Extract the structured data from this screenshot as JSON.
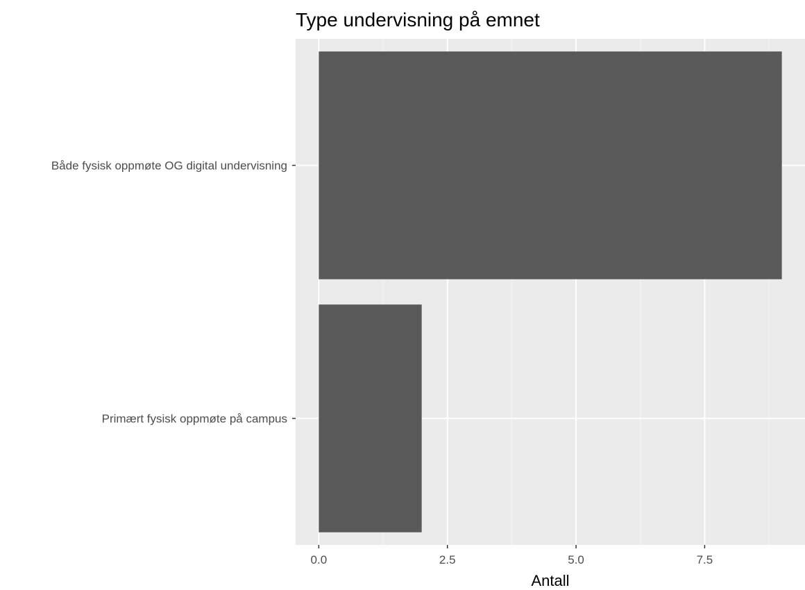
{
  "chart_data": {
    "type": "bar",
    "orientation": "horizontal",
    "title": "Type undervisning på emnet",
    "xlabel": "Antall",
    "ylabel": "",
    "categories": [
      "Både fysisk oppmøte OG digital undervisning",
      "Primært fysisk oppmøte på campus"
    ],
    "values": [
      9,
      2
    ],
    "xlim": [
      -0.45,
      9.45
    ],
    "x_ticks": [
      0,
      2.5,
      5,
      7.5
    ],
    "x_tick_labels": [
      "0.0",
      "2.5",
      "5.0",
      "7.5"
    ],
    "grid": true,
    "legend": "none",
    "colors": {
      "panel_background": "#ebebeb",
      "grid_major": "#ffffff",
      "grid_minor": "#f5f5f5",
      "bar_fill": "#595959",
      "tick_color": "#333333",
      "tick_label": "#4d4d4d",
      "title": "#000000"
    }
  }
}
